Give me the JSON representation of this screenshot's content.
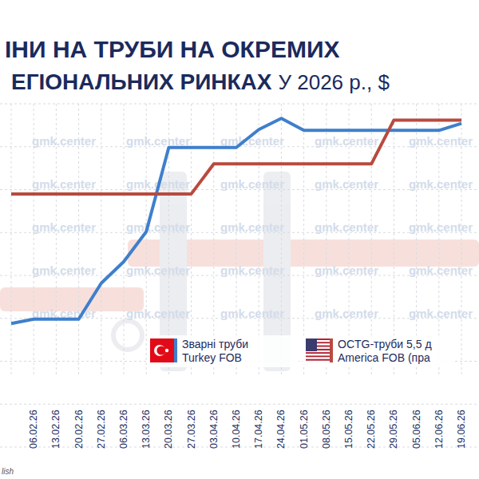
{
  "chart_data": {
    "type": "line",
    "title_lines": [
      "ІНИ НА ТРУБИ НА ОКРЕМИХ",
      "ЕГІОНАЛЬНИХ РИНКАХ"
    ],
    "title_suffix": "У 2026 р., $",
    "watermark": "gmk.center",
    "footer": "lish",
    "categories": [
      null,
      "06.02.26",
      "13.02.26",
      "20.02.26",
      "27.02.26",
      "06.03.26",
      "13.03.26",
      "20.03.26",
      "27.03.26",
      "03.04.26",
      "10.04.26",
      "17.04.26",
      "24.04.26",
      "01.05.26",
      "08.05.26",
      "15.05.26",
      "22.05.26",
      "29.05.26",
      "05.06.26",
      "12.06.26",
      "19.06.26"
    ],
    "series": [
      {
        "name": "Зварні труби\nTurkey FOB",
        "color": "#3f7fcc",
        "marker": "none",
        "line_style": "solid",
        "values": [
          744,
          749,
          749,
          749,
          791,
          816,
          851,
          949,
          949,
          949,
          949,
          970,
          983,
          969,
          969,
          969,
          969,
          969,
          969,
          969,
          977
        ]
      },
      {
        "name": "OCTG-труби 5,5 д\nAmerica FOB (пра",
        "color": "#b84a3f",
        "marker": "none",
        "line_style": "solid",
        "values": [
          895,
          895,
          895,
          895,
          895,
          895,
          895,
          895,
          895,
          930,
          930,
          930,
          930,
          930,
          930,
          930,
          930,
          981,
          981,
          981,
          981
        ]
      }
    ],
    "ylim": [
      600,
      1000
    ],
    "yticks": [
      600,
      650,
      700,
      750,
      800,
      850,
      900,
      950,
      1000
    ],
    "grid": true,
    "tick_labels": "x",
    "legend": "bottom"
  }
}
